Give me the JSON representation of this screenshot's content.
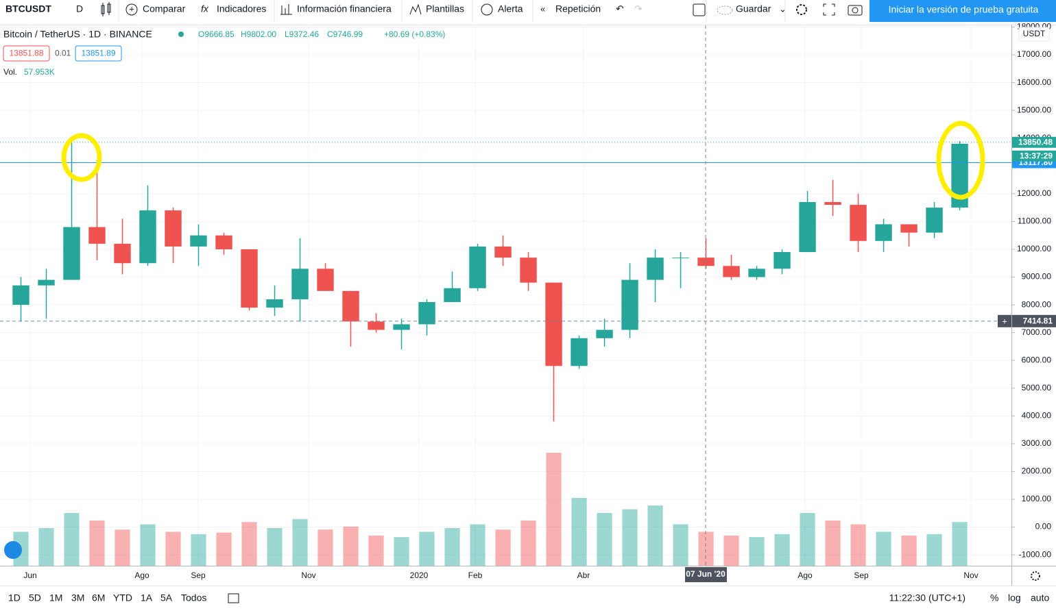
{
  "toolbar": {
    "symbol": "BTCUSDT",
    "interval": "D",
    "buttons": [
      "Comparar",
      "Indicadores",
      "Información financiera",
      "Plantillas",
      "Alerta",
      "Repetición"
    ],
    "save": "Guardar",
    "trial": "Iniciar la versión de prueba gratuita"
  },
  "legend": {
    "title": "Bitcoin / TetherUS · 1D · BINANCE",
    "ohlc": [
      "O9666.85",
      "H9802.00",
      "L9372.46",
      "C9746.99",
      "+80.69 (+0.83%)"
    ],
    "bid": "13851.88",
    "spread": "0.01",
    "ask": "13851.89",
    "vol_label": "Vol.",
    "vol_value": "57.953K"
  },
  "chart": {
    "currency": "USDT",
    "yticks": [
      {
        "value": 18000,
        "label": "18000.00"
      },
      {
        "value": 17000,
        "label": "17000.00"
      },
      {
        "value": 16000,
        "label": "16000.00"
      },
      {
        "value": 15000,
        "label": "15000.00"
      },
      {
        "value": 14000,
        "label": "14000.00"
      },
      {
        "value": 13000,
        "label": "13000.00"
      },
      {
        "value": 12000,
        "label": "12000.00"
      },
      {
        "value": 11000,
        "label": "11000.00"
      },
      {
        "value": 10000,
        "label": "10000.00"
      },
      {
        "value": 9000,
        "label": "9000.00"
      },
      {
        "value": 8000,
        "label": "8000.00"
      },
      {
        "value": 7000,
        "label": "7000.00"
      },
      {
        "value": 6000,
        "label": "6000.00"
      },
      {
        "value": 5000,
        "label": "5000.00"
      },
      {
        "value": 4000,
        "label": "4000.00"
      },
      {
        "value": 3000,
        "label": "3000.00"
      },
      {
        "value": 2000,
        "label": "2000.00"
      },
      {
        "value": 1000,
        "label": "1000.00"
      },
      {
        "value": 0,
        "label": "0.00"
      },
      {
        "value": -1000,
        "label": "-1000.00"
      }
    ],
    "price_lines": [
      {
        "value": 13850.48,
        "label": "13850.48",
        "color": "#26a69a"
      },
      {
        "value": 13117.8,
        "label": "13117.80",
        "color": "#2196f3"
      }
    ],
    "countdown": "13:37:29",
    "crosshair": {
      "value": 7414.81,
      "label": "7414.81",
      "x_label": "07 Jun '20"
    },
    "x_labels": [
      "Jun",
      "Ago",
      "Sep",
      "Nov",
      "2020",
      "Feb",
      "Abr",
      "Ago",
      "Sep",
      "Nov"
    ],
    "candles": {
      "open": [
        8000,
        8700,
        8900,
        10800,
        10200,
        9500,
        11400,
        10100,
        10500,
        10000,
        7900,
        8200,
        9300,
        8500,
        7400,
        7100,
        7300,
        8100,
        8600,
        10100,
        9700,
        8800,
        5800,
        6800,
        7100,
        8900,
        9700,
        9700,
        9400,
        9000,
        9300,
        9900,
        11700,
        11600,
        10300,
        10900,
        10600,
        11500
      ],
      "high": [
        9000,
        9300,
        13900,
        13200,
        11100,
        12300,
        11500,
        10900,
        10600,
        10000,
        8700,
        10400,
        9500,
        8500,
        7700,
        7500,
        8200,
        9200,
        10200,
        10500,
        9900,
        8800,
        6900,
        7500,
        9500,
        10000,
        9900,
        10400,
        9800,
        9400,
        10000,
        12100,
        12500,
        12000,
        11100,
        10900,
        11700,
        13900
      ],
      "low": [
        7400,
        7500,
        8900,
        9600,
        9100,
        9400,
        9500,
        9400,
        9800,
        7800,
        7600,
        7400,
        8500,
        6500,
        7000,
        6400,
        6900,
        8100,
        8500,
        9400,
        8500,
        3800,
        5700,
        6500,
        6800,
        8100,
        8600,
        9300,
        8900,
        8900,
        9100,
        9900,
        11200,
        9900,
        9900,
        10100,
        10400,
        11400
      ],
      "close": [
        8700,
        8900,
        10800,
        10200,
        9500,
        11400,
        10100,
        10500,
        10000,
        7900,
        8200,
        9300,
        8500,
        7400,
        7100,
        7300,
        8100,
        8600,
        10100,
        9700,
        8800,
        5800,
        6800,
        7100,
        8900,
        9700,
        9700,
        9400,
        9000,
        9300,
        9900,
        11700,
        11600,
        10300,
        10900,
        10600,
        11500,
        13800
      ],
      "volume": [
        45,
        50,
        70,
        60,
        48,
        55,
        45,
        42,
        44,
        58,
        50,
        62,
        48,
        52,
        40,
        38,
        45,
        50,
        55,
        48,
        60,
        150,
        90,
        70,
        75,
        80,
        55,
        45,
        40,
        38,
        42,
        70,
        60,
        55,
        45,
        40,
        42,
        58
      ]
    }
  },
  "bottom": {
    "ranges": [
      "1D",
      "5D",
      "1M",
      "3M",
      "6M",
      "YTD",
      "1A",
      "5A",
      "Todos"
    ],
    "clock": "11:22:30 (UTC+1)",
    "percent": "%",
    "log": "log",
    "auto": "auto"
  }
}
